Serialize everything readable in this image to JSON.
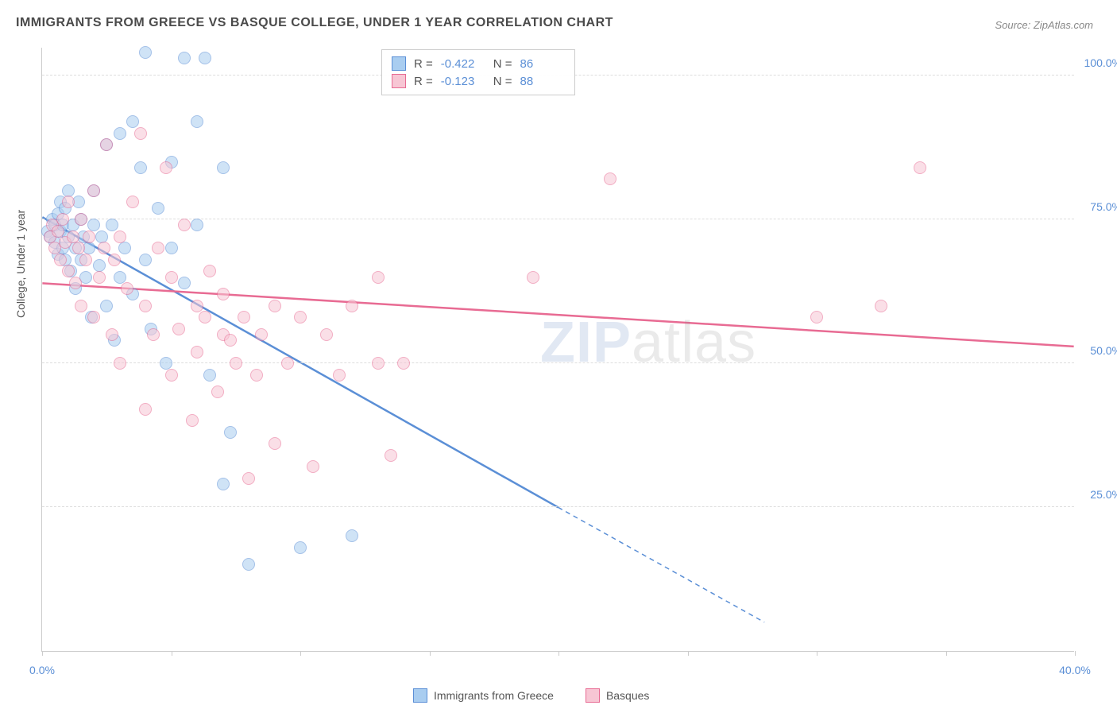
{
  "title": "IMMIGRANTS FROM GREECE VS BASQUE COLLEGE, UNDER 1 YEAR CORRELATION CHART",
  "source": "Source: ZipAtlas.com",
  "ylabel": "College, Under 1 year",
  "watermark_a": "ZIP",
  "watermark_b": "atlas",
  "chart": {
    "type": "scatter",
    "xlim": [
      0,
      40
    ],
    "ylim": [
      0,
      105
    ],
    "x_ticks": [
      0,
      5,
      10,
      15,
      20,
      25,
      30,
      35,
      40
    ],
    "x_tick_labels": {
      "0": "0.0%",
      "40": "40.0%"
    },
    "y_gridlines": [
      25,
      50,
      75,
      100
    ],
    "y_tick_labels": {
      "25": "25.0%",
      "50": "50.0%",
      "75": "75.0%",
      "100": "100.0%"
    },
    "background_color": "#ffffff",
    "grid_color": "#dddddd",
    "axis_color": "#cccccc",
    "tick_label_color": "#5b8fd6",
    "point_radius": 8,
    "point_opacity": 0.55,
    "series": [
      {
        "name": "Immigrants from Greece",
        "fill": "#a9cdf0",
        "stroke": "#5b8fd6",
        "r_value": "-0.422",
        "n_value": "86",
        "trend": {
          "x1": 0,
          "y1": 75.5,
          "x2": 20,
          "y2": 25,
          "x_dash_to": 28,
          "y_dash_to": 5,
          "width": 2.5
        },
        "points": [
          [
            0.2,
            73
          ],
          [
            0.3,
            72
          ],
          [
            0.4,
            75
          ],
          [
            0.5,
            74
          ],
          [
            0.5,
            71
          ],
          [
            0.6,
            76
          ],
          [
            0.6,
            69
          ],
          [
            0.7,
            73
          ],
          [
            0.7,
            78
          ],
          [
            0.8,
            70
          ],
          [
            0.8,
            74
          ],
          [
            0.9,
            77
          ],
          [
            0.9,
            68
          ],
          [
            1.0,
            72
          ],
          [
            1.0,
            80
          ],
          [
            1.1,
            66
          ],
          [
            1.2,
            74
          ],
          [
            1.3,
            70
          ],
          [
            1.3,
            63
          ],
          [
            1.4,
            78
          ],
          [
            1.5,
            75
          ],
          [
            1.5,
            68
          ],
          [
            1.6,
            72
          ],
          [
            1.7,
            65
          ],
          [
            1.8,
            70
          ],
          [
            1.9,
            58
          ],
          [
            2.0,
            74
          ],
          [
            2.0,
            80
          ],
          [
            2.2,
            67
          ],
          [
            2.3,
            72
          ],
          [
            2.5,
            60
          ],
          [
            2.5,
            88
          ],
          [
            2.7,
            74
          ],
          [
            2.8,
            54
          ],
          [
            3.0,
            65
          ],
          [
            3.0,
            90
          ],
          [
            3.2,
            70
          ],
          [
            3.5,
            92
          ],
          [
            3.5,
            62
          ],
          [
            3.8,
            84
          ],
          [
            4.0,
            68
          ],
          [
            4.0,
            104
          ],
          [
            4.2,
            56
          ],
          [
            4.5,
            77
          ],
          [
            4.8,
            50
          ],
          [
            5.0,
            70
          ],
          [
            5.0,
            85
          ],
          [
            5.5,
            103
          ],
          [
            5.5,
            64
          ],
          [
            6.0,
            92
          ],
          [
            6.0,
            74
          ],
          [
            6.3,
            103
          ],
          [
            6.5,
            48
          ],
          [
            7.0,
            84
          ],
          [
            7.0,
            29
          ],
          [
            7.3,
            38
          ],
          [
            8.0,
            15
          ],
          [
            10.0,
            18
          ],
          [
            12.0,
            20
          ]
        ]
      },
      {
        "name": "Basques",
        "fill": "#f7c6d4",
        "stroke": "#e86b93",
        "r_value": "-0.123",
        "n_value": "88",
        "trend": {
          "x1": 0,
          "y1": 64,
          "x2": 40,
          "y2": 53,
          "width": 2.5
        },
        "points": [
          [
            0.3,
            72
          ],
          [
            0.4,
            74
          ],
          [
            0.5,
            70
          ],
          [
            0.6,
            73
          ],
          [
            0.7,
            68
          ],
          [
            0.8,
            75
          ],
          [
            0.9,
            71
          ],
          [
            1.0,
            66
          ],
          [
            1.0,
            78
          ],
          [
            1.2,
            72
          ],
          [
            1.3,
            64
          ],
          [
            1.4,
            70
          ],
          [
            1.5,
            75
          ],
          [
            1.5,
            60
          ],
          [
            1.7,
            68
          ],
          [
            1.8,
            72
          ],
          [
            2.0,
            80
          ],
          [
            2.0,
            58
          ],
          [
            2.2,
            65
          ],
          [
            2.4,
            70
          ],
          [
            2.5,
            88
          ],
          [
            2.7,
            55
          ],
          [
            2.8,
            68
          ],
          [
            3.0,
            72
          ],
          [
            3.0,
            50
          ],
          [
            3.3,
            63
          ],
          [
            3.5,
            78
          ],
          [
            3.8,
            90
          ],
          [
            4.0,
            60
          ],
          [
            4.0,
            42
          ],
          [
            4.3,
            55
          ],
          [
            4.5,
            70
          ],
          [
            4.8,
            84
          ],
          [
            5.0,
            48
          ],
          [
            5.0,
            65
          ],
          [
            5.3,
            56
          ],
          [
            5.5,
            74
          ],
          [
            5.8,
            40
          ],
          [
            6.0,
            60
          ],
          [
            6.0,
            52
          ],
          [
            6.3,
            58
          ],
          [
            6.5,
            66
          ],
          [
            6.8,
            45
          ],
          [
            7.0,
            55
          ],
          [
            7.0,
            62
          ],
          [
            7.3,
            54
          ],
          [
            7.5,
            50
          ],
          [
            7.8,
            58
          ],
          [
            8.0,
            30
          ],
          [
            8.3,
            48
          ],
          [
            8.5,
            55
          ],
          [
            9.0,
            60
          ],
          [
            9.0,
            36
          ],
          [
            9.5,
            50
          ],
          [
            10.0,
            58
          ],
          [
            10.5,
            32
          ],
          [
            11.0,
            55
          ],
          [
            11.5,
            48
          ],
          [
            12.0,
            60
          ],
          [
            13.0,
            50
          ],
          [
            13.0,
            65
          ],
          [
            13.5,
            34
          ],
          [
            14.0,
            50
          ],
          [
            19.0,
            65
          ],
          [
            22.0,
            82
          ],
          [
            30.0,
            58
          ],
          [
            32.5,
            60
          ],
          [
            34.0,
            84
          ]
        ]
      }
    ]
  },
  "stats_legend": {
    "labels": {
      "r": "R =",
      "n": "N ="
    }
  },
  "bottom_legend": {
    "items": [
      {
        "label": "Immigrants from Greece",
        "fill": "#a9cdf0",
        "stroke": "#5b8fd6"
      },
      {
        "label": "Basques",
        "fill": "#f7c6d4",
        "stroke": "#e86b93"
      }
    ]
  }
}
